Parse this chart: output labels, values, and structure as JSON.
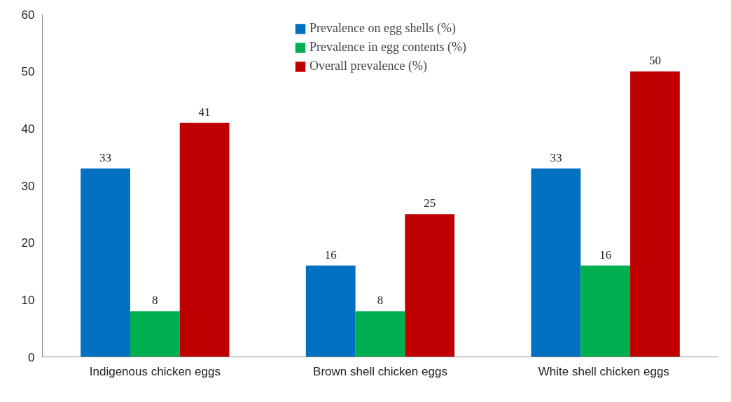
{
  "chart_data": {
    "type": "bar",
    "categories": [
      "Indigenous chicken eggs",
      "Brown shell chicken eggs",
      "White shell chicken  eggs"
    ],
    "series": [
      {
        "name": "Prevalence on egg shells (%)",
        "color": "#0070c0",
        "values": [
          33,
          16,
          33
        ]
      },
      {
        "name": "Prevalence in egg contents (%)",
        "color": "#00b050",
        "values": [
          8,
          8,
          16
        ]
      },
      {
        "name": "Overall prevalence (%)",
        "color": "#c00000",
        "values": [
          41,
          25,
          50
        ]
      }
    ],
    "ylim": [
      0,
      60
    ],
    "yticks": [
      0,
      10,
      20,
      30,
      40,
      50,
      60
    ],
    "grid": false,
    "legend": "top",
    "data_labels": true
  }
}
